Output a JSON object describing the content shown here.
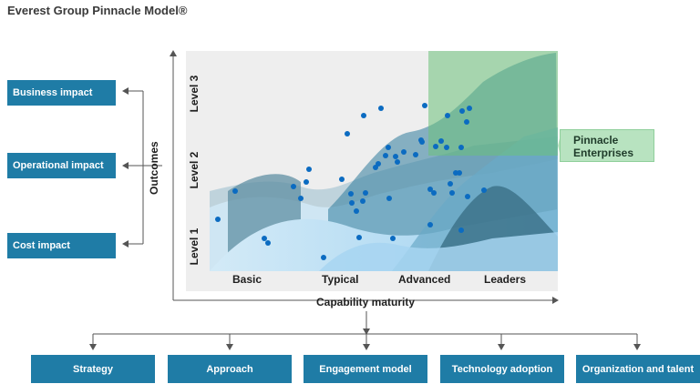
{
  "title": "Everest Group Pinnacle Model®",
  "impacts": [
    "Business impact",
    "Operational impact",
    "Cost impact"
  ],
  "axes": {
    "y_label": "Outcomes",
    "x_label": "Capability maturity"
  },
  "levels": [
    "Level 3",
    "Level 2",
    "Level 1"
  ],
  "tiers": [
    "Basic",
    "Typical",
    "Advanced",
    "Leaders"
  ],
  "pinnacle": {
    "line1": "Pinnacle",
    "line2": "Enterprises"
  },
  "bottom": [
    "Strategy",
    "Approach",
    "Engagement model",
    "Technology adoption",
    "Organization and talent"
  ],
  "colors": {
    "box": "#1f7ca6",
    "dot": "#0b6bc1",
    "pinnacle": "#b8e3c0"
  }
}
